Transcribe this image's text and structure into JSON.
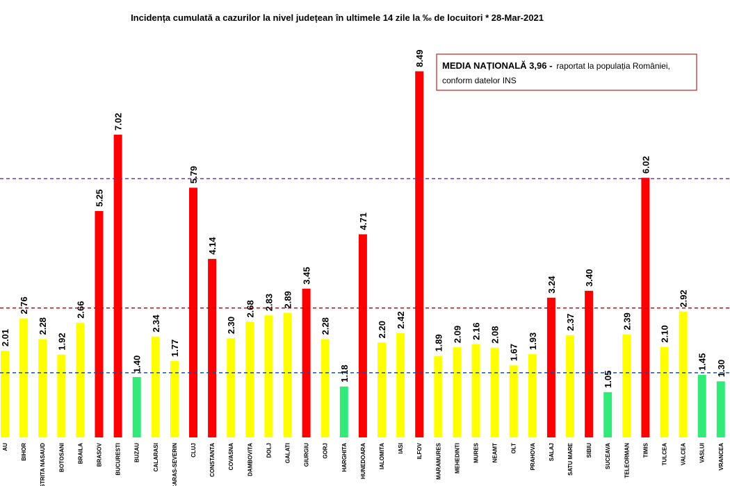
{
  "chart_data": {
    "type": "bar",
    "title": "Incidența cumulată a cazurilor la nivel județean în ultimele 14 zile la ‰ de locuitori * 28-Mar-2021",
    "annotation": {
      "title": "MEDIA NAȚIONALĂ  3,96 -",
      "lines": [
        "raportat la populația României,",
        "conform datelor INS"
      ]
    },
    "categories": [
      "AU",
      "BIHOR",
      "BISTRITA NASAUD",
      "BOTOSANI",
      "BRAILA",
      "BRASOV",
      "BUCURESTI",
      "BUZAU",
      "CALARASI",
      "CARAS-SEVERIN",
      "CLUJ",
      "CONSTANTA",
      "COVASNA",
      "DAMBOVITA",
      "DOLJ",
      "GALATI",
      "GIURGIU",
      "GORJ",
      "HARGHITA",
      "HUNEDOARA",
      "IALOMITA",
      "IASI",
      "ILFOV",
      "MARAMURES",
      "MEHEDINTI",
      "MURES",
      "NEAMT",
      "OLT",
      "PRAHOVA",
      "SALAJ",
      "SATU MARE",
      "SIBIU",
      "SUCEAVA",
      "TELEORMAN",
      "TIMIS",
      "TULCEA",
      "VALCEA",
      "VASLUI",
      "VRANCEA"
    ],
    "values": [
      2.01,
      2.76,
      2.28,
      1.92,
      2.66,
      5.25,
      7.02,
      1.4,
      2.34,
      1.77,
      5.79,
      4.14,
      2.3,
      2.68,
      2.83,
      2.89,
      3.45,
      2.28,
      1.18,
      4.71,
      2.2,
      2.42,
      8.49,
      1.89,
      2.09,
      2.16,
      2.08,
      1.67,
      1.93,
      3.24,
      2.37,
      3.4,
      1.05,
      2.39,
      6.02,
      2.1,
      2.92,
      1.45,
      1.3
    ],
    "value_labels": [
      "2.01",
      "2.76",
      "2.28",
      "1.92",
      "2.66",
      "5.25",
      "7.02",
      "1.40",
      "2.34",
      "1.77",
      "5.79",
      "4.14",
      "2.30",
      "2.68",
      "2.83",
      "2.89",
      "3.45",
      "2.28",
      "1.18",
      "4.71",
      "2.20",
      "2.42",
      "8.49",
      "1.89",
      "2.09",
      "2.16",
      "2.08",
      "1.67",
      "1.93",
      "3.24",
      "2.37",
      "3.40",
      "1.05",
      "2.39",
      "6.02",
      "2.10",
      "2.92",
      "1.45",
      "1.30"
    ],
    "colors": [
      "#ffff00",
      "#ffff00",
      "#ffff00",
      "#ffff00",
      "#ffff00",
      "#ff0000",
      "#ff0000",
      "#33e97a",
      "#ffff00",
      "#ffff00",
      "#ff0000",
      "#ff0000",
      "#ffff00",
      "#ffff00",
      "#ffff00",
      "#ffff00",
      "#ff0000",
      "#ffff00",
      "#33e97a",
      "#ff0000",
      "#ffff00",
      "#ffff00",
      "#ff0000",
      "#ffff00",
      "#ffff00",
      "#ffff00",
      "#ffff00",
      "#ffff00",
      "#ffff00",
      "#ff0000",
      "#ffff00",
      "#ff0000",
      "#33e97a",
      "#ffff00",
      "#ff0000",
      "#ffff00",
      "#ffff00",
      "#33e97a",
      "#33e97a"
    ],
    "reference_lines": [
      {
        "value": 1.5,
        "color": "#1f4e9c"
      },
      {
        "value": 3,
        "color": "#c00000"
      },
      {
        "value": 6,
        "color": "#7030a0"
      }
    ],
    "ylim": [
      0,
      9
    ]
  }
}
